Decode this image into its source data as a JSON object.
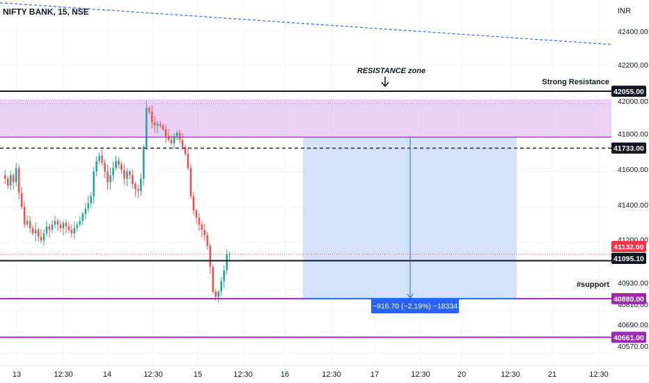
{
  "header": {
    "symbol_line": "NIFTY BANK, 15, NSE"
  },
  "price_axis": {
    "currency": "INR",
    "ticks": [
      "42400.00",
      "42200.00",
      "42000.00",
      "41800.00",
      "41600.00",
      "41400.00",
      "41200.00",
      "40930.00",
      "40810.00",
      "40690.00",
      "40570.00"
    ]
  },
  "time_axis": {
    "labels": [
      "13",
      "12:30",
      "14",
      "12:30",
      "15",
      "12:30",
      "16",
      "12:30",
      "17",
      "12:30",
      "20",
      "12:30",
      "21",
      "12:30"
    ]
  },
  "levels": {
    "strong_resistance": {
      "value": 42055.0,
      "label": "42055.00",
      "text": "Strong Resistance"
    },
    "level_41733": {
      "value": 41733.0,
      "label": "41733.00"
    },
    "current_price": {
      "value": 41132.0,
      "label": "41132.00"
    },
    "level_41095": {
      "value": 41095.1,
      "label": "41095.10"
    },
    "support": {
      "value": 40880.0,
      "label": "40880.00",
      "text": "#support"
    },
    "level_40661": {
      "value": 40661.0,
      "label": "40661.00"
    }
  },
  "annotations": {
    "resistance_zone": "RESISTANCE zone",
    "measure_label": "−916.70 (−2.19%) −18334"
  },
  "colors": {
    "up": "#26a69a",
    "down": "#ef5350",
    "resistance_zone_fill": "#e7c9f5",
    "measure_fill": "#cfe0fb",
    "measure_badge": "#2962ff",
    "support_line": "#9c27b0",
    "current_price_badge": "#f23645"
  },
  "chart_data": {
    "type": "candlestick",
    "symbol": "NIFTY BANK",
    "interval": "15",
    "exchange": "NSE",
    "ylim": [
      40540,
      42560
    ],
    "x_tick_labels": [
      "13",
      "12:30",
      "14",
      "12:30",
      "15",
      "12:30",
      "16",
      "12:30",
      "17",
      "12:30",
      "20",
      "12:30",
      "21",
      "12:30"
    ],
    "close_path": [
      41560,
      41520,
      41580,
      41540,
      41620,
      41480,
      41400,
      41300,
      41320,
      41280,
      41250,
      41270,
      41230,
      41210,
      41250,
      41290,
      41270,
      41300,
      41320,
      41300,
      41280,
      41310,
      41290,
      41270,
      41250,
      41280,
      41300,
      41320,
      41360,
      41390,
      41420,
      41460,
      41600,
      41660,
      41690,
      41650,
      41600,
      41540,
      41580,
      41620,
      41660,
      41640,
      41610,
      41560,
      41600,
      41580,
      41530,
      41500,
      41490,
      41560,
      41740,
      41960,
      41940,
      41880,
      41860,
      41870,
      41860,
      41840,
      41800,
      41780,
      41760,
      41800,
      41820,
      41780,
      41740,
      41700,
      41620,
      41460,
      41380,
      41340,
      41300,
      41270,
      41240,
      41180,
      41060,
      40920,
      40890,
      40920,
      40980,
      41040,
      41130,
      41132
    ],
    "horizontal_levels": [
      42055.0,
      41733.0,
      41095.1,
      40880.0,
      40661.0
    ],
    "resistance_zone": [
      41795,
      42010
    ],
    "measurement": {
      "change": -916.7,
      "change_pct": -2.19,
      "ticks": -18334
    }
  }
}
